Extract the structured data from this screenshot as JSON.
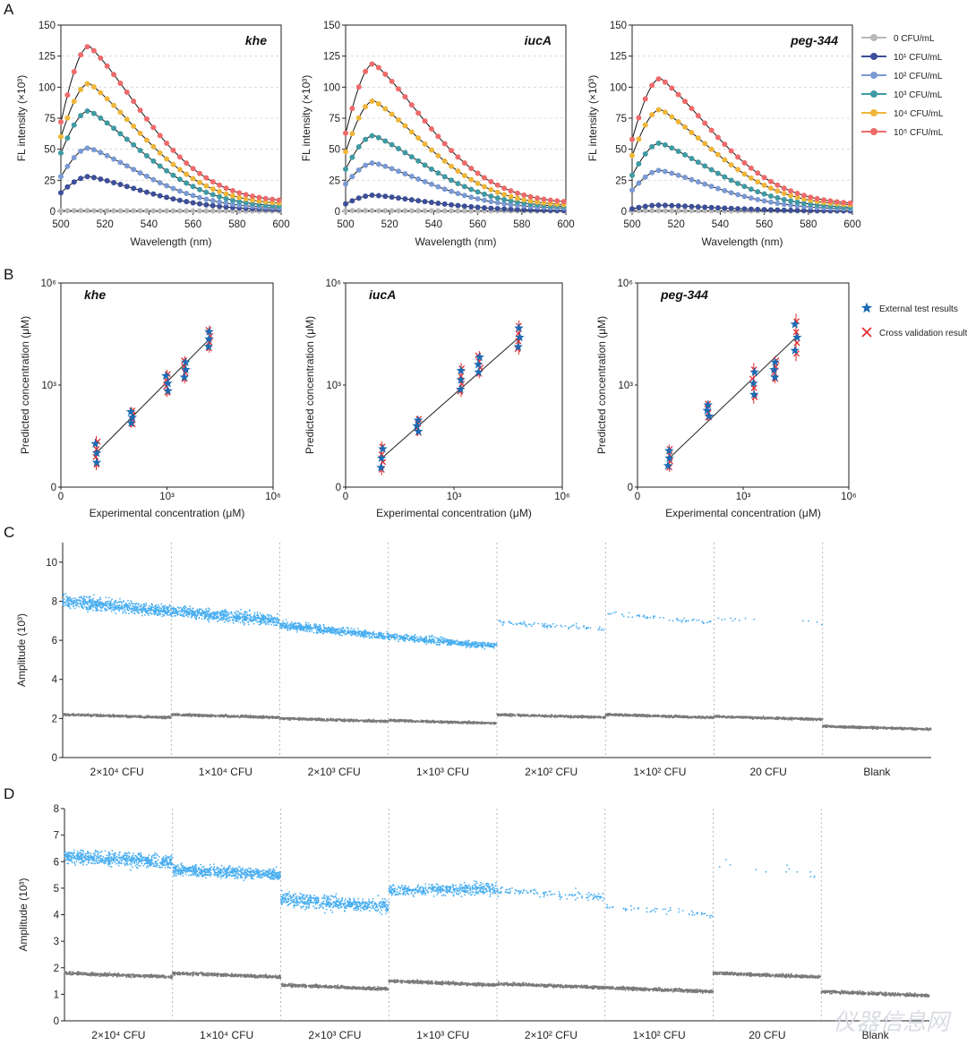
{
  "panels": {
    "A": "A",
    "B": "B",
    "C": "C",
    "D": "D"
  },
  "panel_a": {
    "ylabel": "FL intensity (×10³)",
    "xlabel": "Wavelength (nm)",
    "legend": [
      "0 CFU/mL",
      "10¹ CFU/mL",
      "10² CFU/mL",
      "10³ CFU/mL",
      "10⁴ CFU/mL",
      "10⁵ CFU/mL"
    ],
    "colors": [
      "#b8b8b8",
      "#3d4f99",
      "#7b9ad4",
      "#3f9aa3",
      "#eeb63a",
      "#ef6a6a"
    ]
  },
  "panel_b": {
    "ylabel": "Predicted concentration (μM)",
    "xlabel": "Experimental concentration (μM)",
    "legend": [
      "External test results",
      "Cross validation results"
    ],
    "colors": {
      "star": "#1c6bb3",
      "cross": "#e0282c",
      "line": "#222222"
    }
  },
  "panel_c": {
    "ylabel": "Amplitude (10³)",
    "categories": [
      "2×10⁴ CFU",
      "1×10⁴ CFU",
      "2×10³ CFU",
      "1×10³ CFU",
      "2×10² CFU",
      "1×10² CFU",
      "20 CFU",
      "Blank"
    ]
  },
  "panel_d": {
    "ylabel": "Amplitude (10³)",
    "categories": [
      "2×10⁴ CFU",
      "1×10⁴ CFU",
      "2×10³ CFU",
      "1×10³ CFU",
      "2×10² CFU",
      "1×10² CFU",
      "20 CFU",
      "Blank"
    ]
  },
  "droplet_colors": {
    "positive": "#49aef0",
    "negative": "#7a7a7a"
  },
  "watermark": "仪器信息网",
  "chart_data": [
    {
      "id": "A1",
      "type": "line",
      "title": "khe",
      "xlabel": "Wavelength (nm)",
      "ylabel": "FL intensity (×10³)",
      "xlim": [
        500,
        600
      ],
      "ylim": [
        0,
        150
      ],
      "xticks": [
        500,
        520,
        540,
        560,
        580,
        600
      ],
      "yticks": [
        0,
        25,
        50,
        75,
        100,
        125,
        150
      ],
      "peak_x": 513,
      "series": [
        {
          "name": "0 CFU/mL",
          "peak": 0.5,
          "start": 0.5,
          "end": 0.3
        },
        {
          "name": "10¹ CFU/mL",
          "peak": 28,
          "start": 15,
          "end": 1
        },
        {
          "name": "10² CFU/mL",
          "peak": 51,
          "start": 28,
          "end": 2
        },
        {
          "name": "10³ CFU/mL",
          "peak": 81,
          "start": 47,
          "end": 3
        },
        {
          "name": "10⁴ CFU/mL",
          "peak": 103,
          "start": 60,
          "end": 5
        },
        {
          "name": "10⁵ CFU/mL",
          "peak": 133,
          "start": 72,
          "end": 7
        }
      ]
    },
    {
      "id": "A2",
      "type": "line",
      "title": "iucA",
      "xlabel": "Wavelength (nm)",
      "ylabel": "FL intensity (×10³)",
      "xlim": [
        500,
        600
      ],
      "ylim": [
        0,
        150
      ],
      "xticks": [
        500,
        520,
        540,
        560,
        580,
        600
      ],
      "yticks": [
        0,
        25,
        50,
        75,
        100,
        125,
        150
      ],
      "peak_x": 513,
      "series": [
        {
          "name": "0 CFU/mL",
          "peak": 0.5,
          "start": 0.5,
          "end": 0.3
        },
        {
          "name": "10¹ CFU/mL",
          "peak": 13,
          "start": 6,
          "end": 0.5
        },
        {
          "name": "10² CFU/mL",
          "peak": 39,
          "start": 22,
          "end": 2
        },
        {
          "name": "10³ CFU/mL",
          "peak": 61,
          "start": 34,
          "end": 3
        },
        {
          "name": "10⁴ CFU/mL",
          "peak": 89,
          "start": 48,
          "end": 4
        },
        {
          "name": "10⁵ CFU/mL",
          "peak": 119,
          "start": 63,
          "end": 6
        }
      ]
    },
    {
      "id": "A3",
      "type": "line",
      "title": "peg-344",
      "xlabel": "Wavelength (nm)",
      "ylabel": "FL intensity (×10³)",
      "xlim": [
        500,
        600
      ],
      "ylim": [
        0,
        150
      ],
      "xticks": [
        500,
        520,
        540,
        560,
        580,
        600
      ],
      "yticks": [
        0,
        25,
        50,
        75,
        100,
        125,
        150
      ],
      "peak_x": 513,
      "series": [
        {
          "name": "0 CFU/mL",
          "peak": 0.5,
          "start": 0.5,
          "end": 0.3
        },
        {
          "name": "10¹ CFU/mL",
          "peak": 5,
          "start": 2,
          "end": 0.3
        },
        {
          "name": "10² CFU/mL",
          "peak": 33,
          "start": 17,
          "end": 1.5
        },
        {
          "name": "10³ CFU/mL",
          "peak": 55,
          "start": 29,
          "end": 2.5
        },
        {
          "name": "10⁴ CFU/mL",
          "peak": 82,
          "start": 45,
          "end": 4
        },
        {
          "name": "10⁵ CFU/mL",
          "peak": 107,
          "start": 58,
          "end": 5
        }
      ]
    },
    {
      "id": "B1",
      "type": "scatter",
      "title": "khe",
      "xlabel": "Experimental concentration (μM)",
      "ylabel": "Predicted concentration (μM)",
      "xticks": [
        "0",
        "10³",
        "10⁶"
      ],
      "yticks": [
        "0",
        "10³",
        "10⁶"
      ],
      "points": [
        {
          "x": 1,
          "y": 1.0,
          "err": 0.5
        },
        {
          "x": 2,
          "y": 2.05,
          "err": 0.3
        },
        {
          "x": 3,
          "y": 3.05,
          "err": 0.4
        },
        {
          "x": 3.5,
          "y": 3.45,
          "err": 0.4
        },
        {
          "x": 4.2,
          "y": 4.35,
          "err": 0.4
        }
      ]
    },
    {
      "id": "B2",
      "type": "scatter",
      "title": "iucA",
      "xlabel": "Experimental concentration (μM)",
      "ylabel": "Predicted concentration (μM)",
      "xticks": [
        "0",
        "10³",
        "10⁶"
      ],
      "yticks": [
        "0",
        "10³",
        "10⁶"
      ],
      "points": [
        {
          "x": 1,
          "y": 0.85,
          "err": 0.5
        },
        {
          "x": 2,
          "y": 1.8,
          "err": 0.3
        },
        {
          "x": 3.2,
          "y": 3.15,
          "err": 0.5
        },
        {
          "x": 3.7,
          "y": 3.6,
          "err": 0.4
        },
        {
          "x": 4.8,
          "y": 4.4,
          "err": 0.5
        }
      ]
    },
    {
      "id": "B3",
      "type": "scatter",
      "title": "peg-344",
      "xlabel": "Experimental concentration (μM)",
      "ylabel": "Predicted concentration (μM)",
      "xticks": [
        "0",
        "10³",
        "10⁶"
      ],
      "yticks": [
        "0",
        "10³",
        "10⁶"
      ],
      "points": [
        {
          "x": 0.9,
          "y": 0.85,
          "err": 0.4
        },
        {
          "x": 2.0,
          "y": 2.25,
          "err": 0.3
        },
        {
          "x": 3.3,
          "y": 3.05,
          "err": 0.6
        },
        {
          "x": 3.9,
          "y": 3.45,
          "err": 0.4
        },
        {
          "x": 4.5,
          "y": 4.4,
          "err": 0.7
        }
      ]
    },
    {
      "id": "C",
      "type": "scatter",
      "title": "",
      "ylabel": "Amplitude (10³)",
      "ylim": [
        0,
        11
      ],
      "yticks": [
        0,
        2,
        4,
        6,
        8,
        10
      ],
      "wells": [
        {
          "label": "2×10⁴ CFU",
          "pos_start": 8.0,
          "pos_end": 7.5,
          "pos_spread": 0.55,
          "pos_density": 1.0,
          "neg": 2.2
        },
        {
          "label": "1×10⁴ CFU",
          "pos_start": 7.5,
          "pos_end": 7.0,
          "pos_spread": 0.5,
          "pos_density": 1.0,
          "neg": 2.2
        },
        {
          "label": "2×10³ CFU",
          "pos_start": 6.8,
          "pos_end": 6.2,
          "pos_spread": 0.35,
          "pos_density": 0.85,
          "neg": 2.0
        },
        {
          "label": "1×10³ CFU",
          "pos_start": 6.2,
          "pos_end": 5.7,
          "pos_spread": 0.3,
          "pos_density": 0.75,
          "neg": 1.9
        },
        {
          "label": "2×10² CFU",
          "pos_start": 6.9,
          "pos_end": 6.6,
          "pos_spread": 0.25,
          "pos_density": 0.12,
          "neg": 2.2
        },
        {
          "label": "1×10² CFU",
          "pos_start": 7.4,
          "pos_end": 6.9,
          "pos_spread": 0.2,
          "pos_density": 0.08,
          "neg": 2.2
        },
        {
          "label": "20 CFU",
          "pos_start": 7.1,
          "pos_end": 6.9,
          "pos_spread": 0.2,
          "pos_density": 0.02,
          "neg": 2.1
        },
        {
          "label": "Blank",
          "pos_start": 0,
          "pos_end": 0,
          "pos_spread": 0,
          "pos_density": 0,
          "neg": 1.6
        }
      ]
    },
    {
      "id": "D",
      "type": "scatter",
      "title": "",
      "ylabel": "Amplitude (10³)",
      "ylim": [
        0,
        8
      ],
      "yticks": [
        0,
        1,
        2,
        3,
        4,
        5,
        6,
        7,
        8
      ],
      "wells": [
        {
          "label": "2×10⁴ CFU",
          "pos_start": 6.2,
          "pos_end": 6.0,
          "pos_spread": 0.45,
          "pos_density": 1.0,
          "neg": 1.8
        },
        {
          "label": "1×10⁴ CFU",
          "pos_start": 5.7,
          "pos_end": 5.5,
          "pos_spread": 0.35,
          "pos_density": 1.0,
          "neg": 1.8
        },
        {
          "label": "2×10³ CFU",
          "pos_start": 4.6,
          "pos_end": 4.3,
          "pos_spread": 0.45,
          "pos_density": 0.85,
          "neg": 1.35
        },
        {
          "label": "1×10³ CFU",
          "pos_start": 4.9,
          "pos_end": 5.0,
          "pos_spread": 0.35,
          "pos_density": 0.7,
          "neg": 1.5
        },
        {
          "label": "2×10² CFU",
          "pos_start": 4.9,
          "pos_end": 4.7,
          "pos_spread": 0.3,
          "pos_density": 0.18,
          "neg": 1.4
        },
        {
          "label": "1×10² CFU",
          "pos_start": 4.3,
          "pos_end": 4.0,
          "pos_spread": 0.25,
          "pos_density": 0.08,
          "neg": 1.25
        },
        {
          "label": "20 CFU",
          "pos_start": 5.9,
          "pos_end": 5.5,
          "pos_spread": 0.4,
          "pos_density": 0.02,
          "neg": 1.8
        },
        {
          "label": "Blank",
          "pos_start": 0,
          "pos_end": 0,
          "pos_spread": 0,
          "pos_density": 0,
          "neg": 1.1
        }
      ]
    }
  ]
}
